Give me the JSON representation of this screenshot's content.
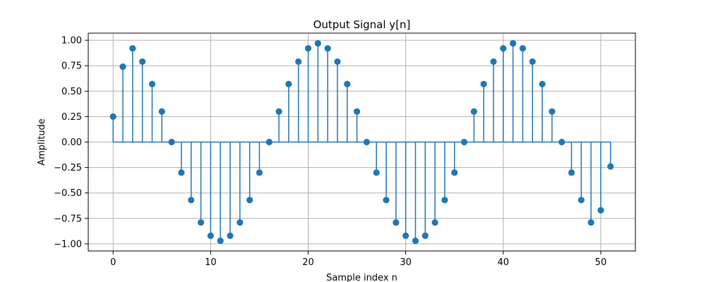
{
  "chart_data": {
    "type": "stem",
    "title": "Output Signal y[n]",
    "xlabel": "Sample index n",
    "ylabel": "Amplitude",
    "xlim": [
      -2.55,
      53.55
    ],
    "ylim": [
      -1.07,
      1.07
    ],
    "xticks": [
      0,
      10,
      20,
      30,
      40,
      50
    ],
    "yticks": [
      -1.0,
      -0.75,
      -0.5,
      -0.25,
      0.0,
      0.25,
      0.5,
      0.75,
      1.0
    ],
    "ytick_labels": [
      "−1.00",
      "−0.75",
      "−0.50",
      "−0.25",
      "0.00",
      "0.25",
      "0.50",
      "0.75",
      "1.00"
    ],
    "grid": true,
    "color": "#1f77b4",
    "baseline": 0,
    "x": [
      0,
      1,
      2,
      3,
      4,
      5,
      6,
      7,
      8,
      9,
      10,
      11,
      12,
      13,
      14,
      15,
      16,
      17,
      18,
      19,
      20,
      21,
      22,
      23,
      24,
      25,
      26,
      27,
      28,
      29,
      30,
      31,
      32,
      33,
      34,
      35,
      36,
      37,
      38,
      39,
      40,
      41,
      42,
      43,
      44,
      45,
      46,
      47,
      48,
      49,
      50,
      51
    ],
    "values": [
      0.25,
      0.74,
      0.92,
      0.79,
      0.57,
      0.3,
      0.0,
      -0.3,
      -0.57,
      -0.79,
      -0.92,
      -0.97,
      -0.92,
      -0.79,
      -0.57,
      -0.3,
      0.0,
      0.3,
      0.57,
      0.79,
      0.92,
      0.97,
      0.92,
      0.79,
      0.57,
      0.3,
      0.0,
      -0.3,
      -0.57,
      -0.79,
      -0.92,
      -0.97,
      -0.92,
      -0.79,
      -0.57,
      -0.3,
      0.0,
      0.3,
      0.57,
      0.79,
      0.92,
      0.97,
      0.92,
      0.79,
      0.57,
      0.3,
      0.0,
      -0.3,
      -0.57,
      -0.79,
      -0.67,
      -0.24
    ]
  }
}
